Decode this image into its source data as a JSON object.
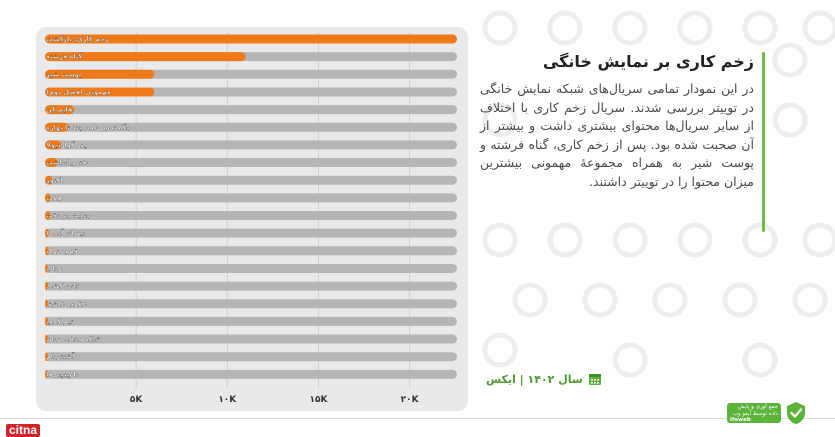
{
  "header": {
    "title": "زخم کاری بر نمایش خانگی",
    "description": "در این نمودار تمامی سریال‌های شبکه نمایش خانگی در توییتر بررسی شدند. سریال زخم کاری با اختلاف از سایر سریال‌ها محتوای بیشتری داشت و بیشتر از آن صحبت شده بود. پس از زخم کاری، گناه فرشته و پوست شیر به همراه مجموعهٔ مهمونی بیشترین میزان محتوا را در توییتر داشتند."
  },
  "footer": {
    "year_label": "سال ۱۴۰۲ | ایکس",
    "logo_text": "جمع آوری و پایش داده توسط آیفو وب",
    "logo_sub": "ifoweb",
    "source_mark": "citna"
  },
  "colors": {
    "accent_bar": "#f07a1a",
    "track": "#b5b5b5",
    "green": "#5cb33a"
  },
  "icons": {
    "calendar": "calendar-icon",
    "logo": "shield-logo-icon"
  },
  "chart_data": {
    "type": "bar",
    "orientation": "horizontal",
    "categories": [
      "زخم کاری: بازگشت",
      "گناه فرشته",
      "پوست شیر",
      "مهمونی (فصل دوم)",
      "رهایم کن",
      "جگه تموم عمر چند تا بهاره",
      "پدر گواردیولا",
      "دفتر یادداشت",
      "اکتور",
      "هفت",
      "جنایت بی‌دقت",
      "نیسان آبی ۲",
      "قهوه ترک",
      "مرداب",
      "خاتن کشی",
      "عقرب عاشق",
      "تیم کمپ",
      "شبکه مخفی زنان",
      "آشنتردام",
      "داوینچی‌ها"
    ],
    "values": [
      22600,
      11000,
      6000,
      6000,
      1600,
      1300,
      900,
      700,
      400,
      300,
      300,
      200,
      200,
      150,
      150,
      120,
      100,
      100,
      80,
      60
    ],
    "xticks": [
      "۵K",
      "۱۰K",
      "۱۵K",
      "۲۰K"
    ],
    "xtick_values": [
      5000,
      10000,
      15000,
      20000
    ],
    "xlim": [
      0,
      22600
    ],
    "grid": true
  }
}
